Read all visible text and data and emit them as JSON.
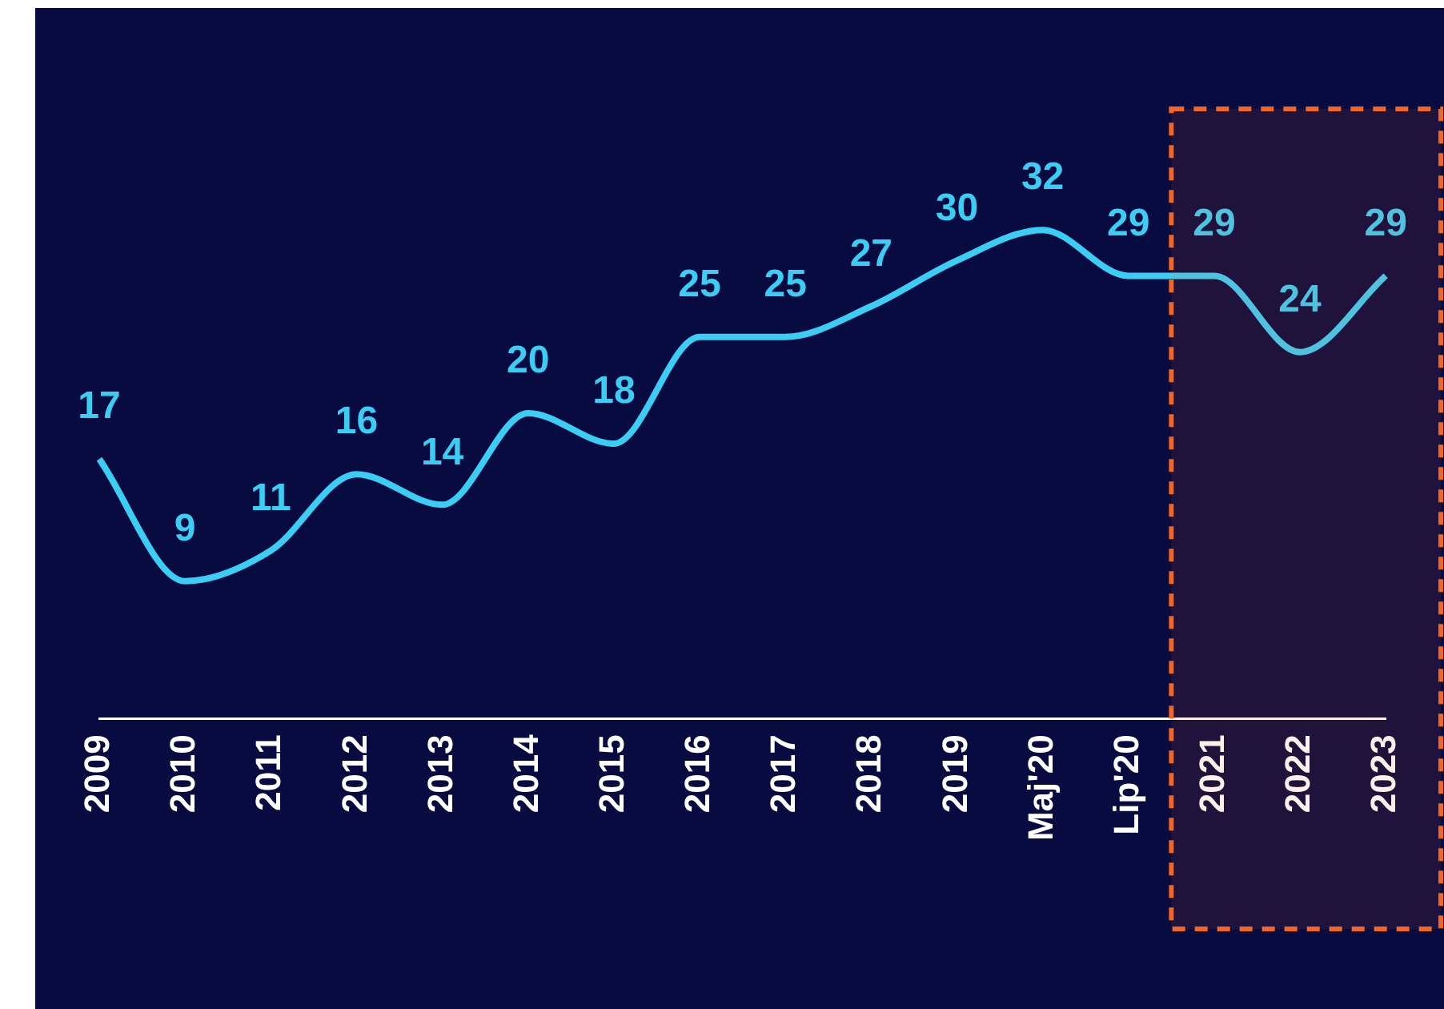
{
  "chart_data": {
    "type": "line",
    "categories": [
      "2009",
      "2010",
      "2011",
      "2012",
      "2013",
      "2014",
      "2015",
      "2016",
      "2017",
      "2018",
      "2019",
      "Maj'20",
      "Lip'20",
      "2021",
      "2022",
      "2023"
    ],
    "series": [
      {
        "color": "#3ccdf5",
        "values": [
          17,
          9,
          11,
          16,
          14,
          20,
          18,
          25,
          25,
          27,
          30,
          32,
          29,
          29,
          24,
          29
        ]
      }
    ],
    "data_labels": true,
    "grid": false,
    "legend": false,
    "marker": "none",
    "tick_labels": "x",
    "bands": [
      {
        "axis": "x",
        "from": "2021",
        "to": "2023",
        "color": "#f26522"
      }
    ]
  }
}
